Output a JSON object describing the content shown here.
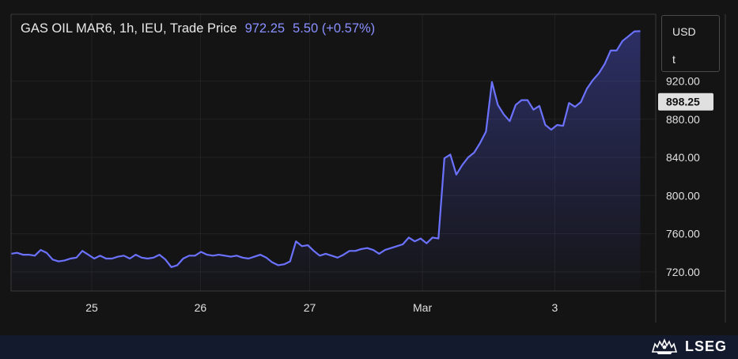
{
  "legend": {
    "symbol": "GAS OIL MAR6, 1h, IEU, Trade Price",
    "last": "972.25",
    "change": "5.50 (+0.57%)"
  },
  "unit_box": {
    "currency": "USD",
    "unit": "t"
  },
  "brand": {
    "name": "LSEG",
    "logo_icon": "lseg-lion-crest-icon"
  },
  "colors": {
    "line": "#6b72ff",
    "price_tag_bg": "#e0e0e0",
    "price_tag_text": "#111111"
  },
  "chart_data": {
    "type": "area",
    "ylim": [
      700,
      990
    ],
    "xlim": [
      0,
      107
    ],
    "y_ticks": [
      720,
      760,
      800,
      840,
      880,
      920
    ],
    "y_tick_labels": [
      "720.00",
      "760.00",
      "800.00",
      "840.00",
      "880.00",
      "920.00"
    ],
    "x_ticks": [
      {
        "pos": 13.6,
        "label": "25"
      },
      {
        "pos": 31.9,
        "label": "26"
      },
      {
        "pos": 50.3,
        "label": "27"
      },
      {
        "pos": 69.3,
        "label": "Mar"
      },
      {
        "pos": 91.6,
        "label": "3"
      }
    ],
    "price_tag": {
      "value": 898.25,
      "label": "898.25"
    },
    "series": [
      {
        "x": [
          0,
          1,
          2,
          3,
          4,
          5,
          6,
          7,
          8,
          9,
          10,
          11,
          12,
          13,
          14,
          15,
          16,
          17,
          18,
          19,
          20,
          21,
          22,
          23,
          24,
          25,
          26,
          27,
          28,
          29,
          30,
          31,
          32,
          33,
          34,
          35,
          36,
          37,
          38,
          39,
          40,
          41,
          42,
          43,
          44,
          45,
          46,
          47,
          48,
          49,
          50,
          51,
          52,
          53,
          54,
          55,
          56,
          57,
          58,
          59,
          60,
          61,
          62,
          63,
          64,
          65,
          66,
          67,
          68,
          69,
          70,
          71,
          72,
          73,
          74,
          75,
          76,
          77,
          78,
          79,
          80,
          81,
          82,
          83,
          84,
          85,
          86,
          87,
          88,
          89,
          90,
          91,
          92,
          93,
          94,
          95,
          96,
          97,
          98,
          99
        ],
        "values": [
          739,
          740,
          738,
          738,
          737,
          743,
          740,
          733,
          731,
          732,
          734,
          735,
          742,
          738,
          734,
          737,
          734,
          734,
          736,
          737,
          734,
          738,
          735,
          734,
          735,
          738,
          733,
          725,
          727,
          734,
          737,
          737,
          741,
          738,
          737,
          738,
          737,
          736,
          737,
          735,
          734,
          736,
          738,
          735,
          730,
          727,
          728,
          731,
          752,
          747,
          748,
          742,
          737,
          739,
          737,
          735,
          738,
          742,
          742,
          744,
          745,
          743,
          739,
          743,
          745,
          747,
          749,
          756,
          752,
          755,
          750,
          756,
          755,
          839,
          843,
          822,
          832,
          840,
          845,
          855,
          867,
          919,
          895,
          885,
          878,
          895,
          900,
          900,
          890,
          894,
          874,
          869,
          874,
          873,
          897,
          893,
          898,
          912,
          921,
          928
        ]
      }
    ],
    "series_tail": {
      "x": [
        100,
        101,
        102,
        103,
        104,
        105,
        106
      ],
      "values": [
        938,
        952,
        952,
        962,
        967,
        972,
        972.25
      ]
    }
  }
}
